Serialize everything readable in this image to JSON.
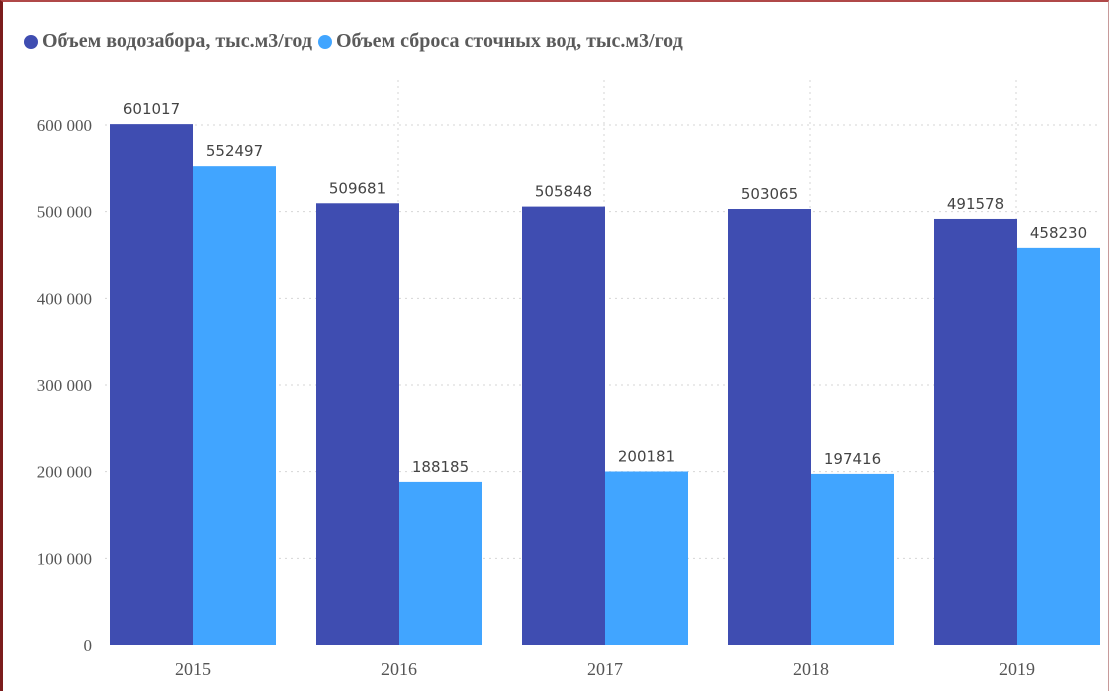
{
  "chart_data": {
    "type": "bar",
    "categories": [
      "2015",
      "2016",
      "2017",
      "2018",
      "2019"
    ],
    "series": [
      {
        "name": "Объем водозабора, тыс.м3/год",
        "color": "#3f4db1",
        "values": [
          601017,
          509681,
          505848,
          503065,
          491578
        ]
      },
      {
        "name": "Объем сброса сточных вод, тыс.м3/год",
        "color": "#41a5ff",
        "values": [
          552497,
          188185,
          200181,
          197416,
          458230
        ]
      }
    ],
    "y_ticks": [
      "0",
      "100 000",
      "200 000",
      "300 000",
      "400 000",
      "500 000",
      "600 000"
    ],
    "ylim": [
      0,
      600000
    ],
    "grid": true,
    "legend_position": "top-left"
  },
  "legend": {
    "item1": "Объем водозабора, тыс.м3/год",
    "item2": "Объем сброса сточных вод, тыс.м3/год",
    "color1": "#3f4db1",
    "color2": "#41a5ff"
  }
}
